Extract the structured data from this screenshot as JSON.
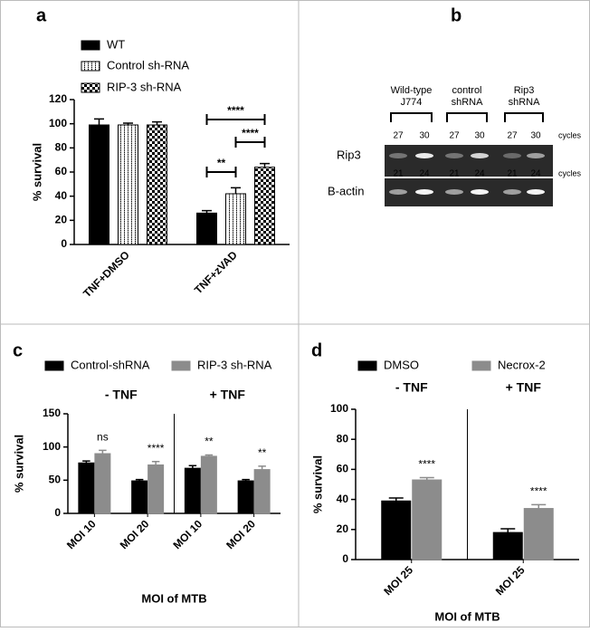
{
  "chart_data": [
    {
      "type": "bar",
      "panel_label": "a",
      "ylabel": "% survival",
      "categories": [
        "TNF+DMSO",
        "TNF+zVAD"
      ],
      "series": [
        {
          "name": "WT",
          "color": "#000000",
          "pattern": "solid",
          "values": [
            99,
            26
          ],
          "errors": [
            5,
            2
          ]
        },
        {
          "name": "Control sh-RNA",
          "color": "#000000",
          "pattern": "dots",
          "values": [
            99,
            42
          ],
          "errors": [
            1.5,
            5
          ]
        },
        {
          "name": "RIP-3 sh-RNA",
          "color": "#000000",
          "pattern": "checker",
          "values": [
            99,
            64
          ],
          "errors": [
            2.5,
            3
          ]
        }
      ],
      "annotations": [
        "****",
        "****",
        "**"
      ],
      "ylim": [
        0,
        120
      ],
      "yticks": [
        0,
        20,
        40,
        60,
        80,
        100,
        120
      ]
    },
    {
      "type": "bar",
      "panel_label": "c",
      "ylabel": "% survival",
      "xlabel": "MOI of MTB",
      "categories": [
        "MOI 10",
        "MOI 20",
        "MOI 10",
        "MOI 20"
      ],
      "group_labels": [
        "- TNF",
        "+ TNF"
      ],
      "series": [
        {
          "name": "Control-shRNA",
          "color": "#000000",
          "pattern": "solid",
          "values": [
            76,
            49,
            68,
            49
          ],
          "errors": [
            3,
            2,
            4,
            2
          ]
        },
        {
          "name": "RIP-3 sh-RNA",
          "color": "#8c8c8c",
          "pattern": "solid",
          "values": [
            90,
            73,
            86,
            66
          ],
          "errors": [
            5,
            5,
            2,
            5
          ]
        }
      ],
      "significance": [
        "ns",
        "****",
        "**",
        "**"
      ],
      "ylim": [
        0,
        150
      ],
      "yticks": [
        0,
        50,
        100,
        150
      ]
    },
    {
      "type": "bar",
      "panel_label": "d",
      "ylabel": "% survival",
      "xlabel": "MOI of MTB",
      "categories": [
        "MOI 25",
        "MOI 25"
      ],
      "group_labels": [
        "- TNF",
        "+ TNF"
      ],
      "series": [
        {
          "name": "DMSO",
          "color": "#000000",
          "pattern": "solid",
          "values": [
            39,
            18
          ],
          "errors": [
            2,
            2.5
          ]
        },
        {
          "name": "Necrox-2",
          "color": "#8c8c8c",
          "pattern": "solid",
          "values": [
            53,
            34
          ],
          "errors": [
            1.5,
            2.5
          ]
        }
      ],
      "significance": [
        "****",
        "****"
      ],
      "ylim": [
        0,
        100
      ],
      "yticks": [
        0,
        20,
        40,
        60,
        80,
        100
      ]
    }
  ],
  "gel": {
    "panel_label": "b",
    "lane_groups": [
      [
        "Wild-type",
        "J774"
      ],
      [
        "control",
        "shRNA"
      ],
      [
        "Rip3",
        "shRNA"
      ]
    ],
    "rows": [
      {
        "label": "Rip3",
        "cycles": [
          27,
          30,
          27,
          30,
          27,
          30
        ],
        "unit": "cycles"
      },
      {
        "label": "B-actin",
        "cycles": [
          21,
          24,
          21,
          24,
          21,
          24
        ],
        "unit": "cycles"
      }
    ]
  }
}
